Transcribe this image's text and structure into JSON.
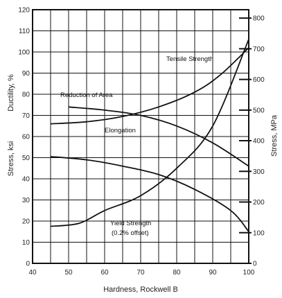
{
  "chart_data": {
    "type": "line",
    "xlabel": "Hardness, Rockwell B",
    "ylabel_left": "Stress, ksi",
    "ylabel_left_secondary": "Ductility, %",
    "ylabel_right": "Stress, MPa",
    "xlim": [
      40,
      100
    ],
    "ylim": [
      0,
      120
    ],
    "ylim_right": [
      0,
      827.4
    ],
    "x_ticks": [
      40,
      50,
      60,
      70,
      80,
      90,
      100
    ],
    "y_ticks": [
      0,
      10,
      20,
      30,
      40,
      50,
      60,
      70,
      80,
      90,
      100,
      110,
      120
    ],
    "y_ticks_right": [
      0,
      100,
      200,
      300,
      400,
      500,
      600,
      700,
      800
    ],
    "grid": true,
    "annotations": {
      "tensile": "Tensile Strength",
      "reduction": "Reduction of Area",
      "elongation": "Elongation",
      "yield_line1": "Yield Strength",
      "yield_line2": "(0.2% offset)"
    },
    "series": [
      {
        "name": "Tensile Strength",
        "x": [
          45,
          55,
          65,
          75,
          85,
          92,
          100
        ],
        "y": [
          66,
          67,
          69.5,
          74,
          81,
          89,
          102
        ]
      },
      {
        "name": "Reduction of Area",
        "x": [
          50,
          60,
          70,
          80,
          90,
          100
        ],
        "y": [
          74,
          72.5,
          70,
          65,
          57,
          46
        ]
      },
      {
        "name": "Elongation",
        "x": [
          45,
          55,
          65,
          75,
          85,
          95,
          100
        ],
        "y": [
          50.5,
          49,
          46,
          42,
          35,
          25,
          15
        ]
      },
      {
        "name": "Yield Strength (0.2% offset)",
        "x": [
          45,
          53,
          60,
          70,
          80,
          90,
          100
        ],
        "y": [
          17.5,
          19,
          25,
          32,
          45,
          65,
          106
        ]
      }
    ]
  }
}
